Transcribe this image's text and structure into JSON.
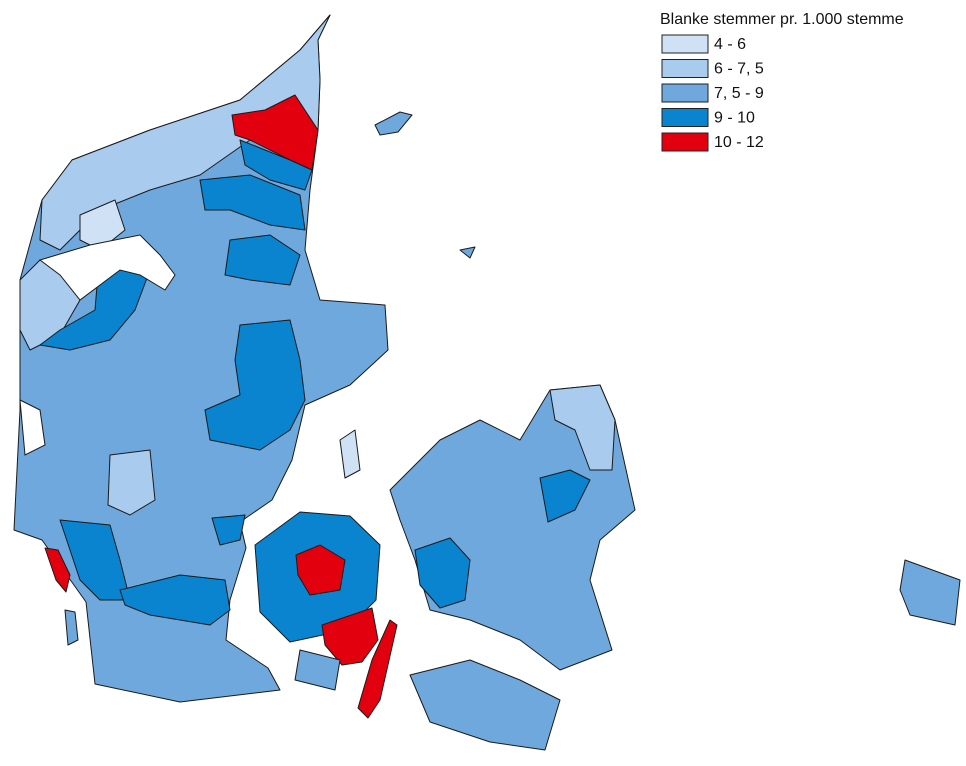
{
  "legend": {
    "title": "Blanke stemmer pr. 1.000 stemme",
    "items": [
      {
        "label": "4 - 6",
        "color": "#cfe2f5"
      },
      {
        "label": "6 - 7, 5",
        "color": "#a9cbee"
      },
      {
        "label": "7, 5 - 9",
        "color": "#6fa8dc"
      },
      {
        "label": "9 - 10",
        "color": "#0b84d0"
      },
      {
        "label": "10 - 12",
        "color": "#e2000f"
      }
    ]
  }
}
